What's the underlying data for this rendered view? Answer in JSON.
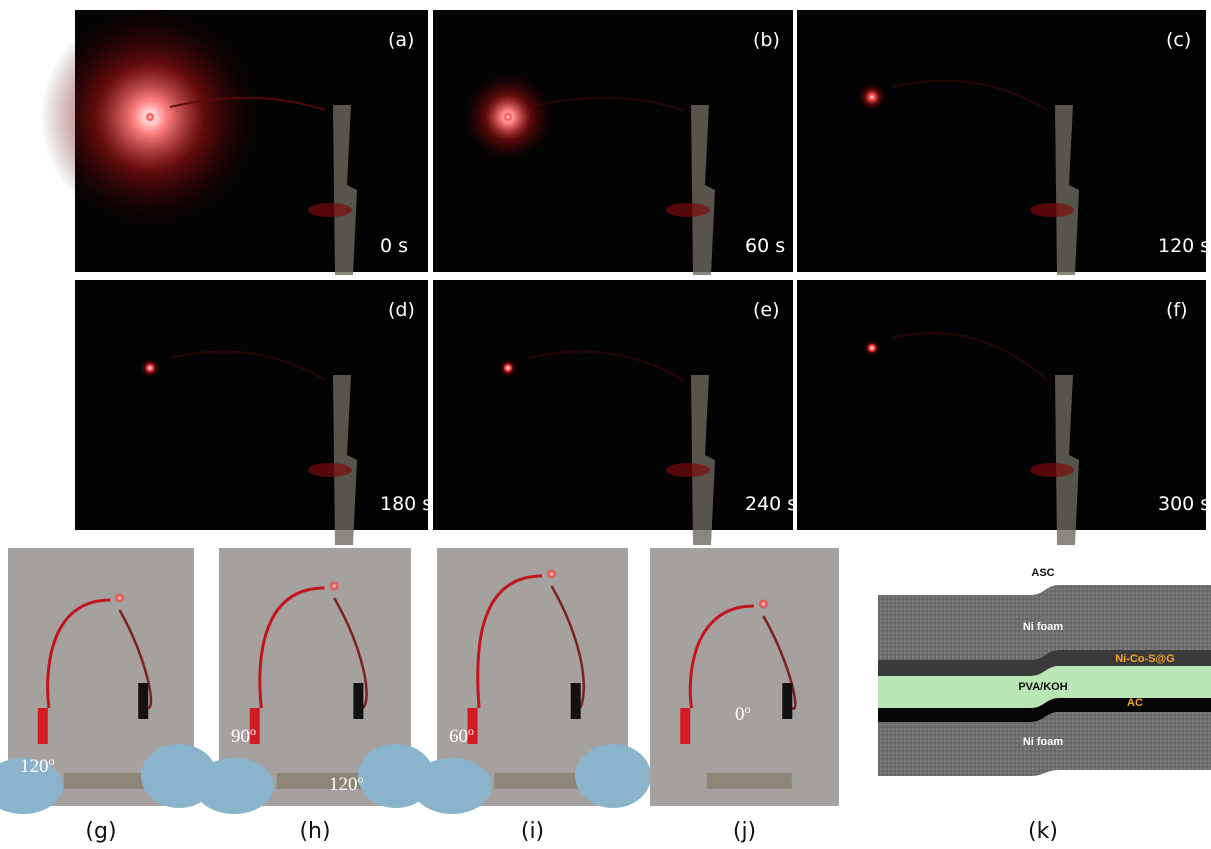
{
  "dark_panels": [
    {
      "label": "(a)",
      "time": "0 s"
    },
    {
      "label": "(b)",
      "time": "60 s"
    },
    {
      "label": "(c)",
      "time": "120 s"
    },
    {
      "label": "(d)",
      "time": "180 s"
    },
    {
      "label": "(e)",
      "time": "240 s"
    },
    {
      "label": "(f)",
      "time": "300 s"
    }
  ],
  "bend_panels": [
    {
      "caption": "(g)",
      "angle": "120",
      "angle_sup": "o"
    },
    {
      "caption": "(h)",
      "angle": "90",
      "angle_sup": "o",
      "extra_angle": "120",
      "extra_sup": "o"
    },
    {
      "caption": "(i)",
      "angle": "60",
      "angle_sup": "o"
    },
    {
      "caption": "(j)",
      "angle": "0",
      "angle_sup": "o"
    }
  ],
  "diagram": {
    "caption": "(k)",
    "title": "ASC",
    "top_layer": "Ni foam",
    "cathode": "Ni-Co-S@G",
    "electrolyte": "PVA/KOH",
    "anode": "AC",
    "bottom_layer": "Ni foam"
  }
}
